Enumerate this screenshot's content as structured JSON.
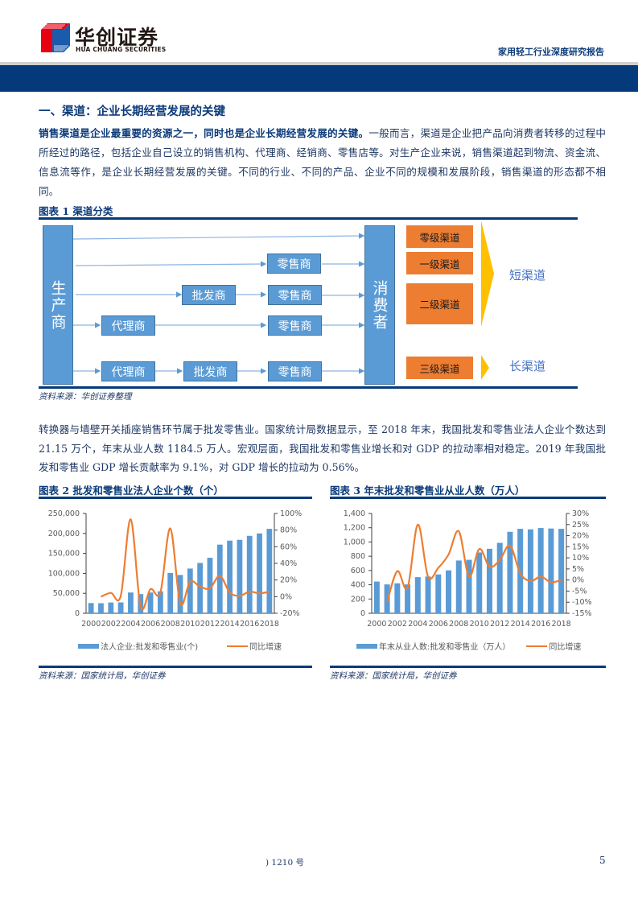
{
  "header": {
    "logo_cn": "华创证券",
    "logo_en": "HUA CHUANG SECURITIES",
    "report_title": "家用轻工行业深度研究报告"
  },
  "section": {
    "title": "一、渠道：企业长期经营发展的关键",
    "para1_bold": "销售渠道是企业最重要的资源之一，同时也是企业长期经营发展的关键。",
    "para1_rest": "一般而言，渠道是企业把产品向消费者转移的过程中所经过的路径，包括企业自己设立的销售机构、代理商、经销商、零售店等。对生产企业来说，销售渠道起到物流、资金流、信息流等作，是企业长期经营发展的关键。不同的行业、不同的产品、企业不同的规模和发展阶段，销售渠道的形态都不相同。",
    "para2": "转换器与墙壁开关插座销售环节属于批发零售业。国家统计局数据显示，至 2018 年末，我国批发和零售业法人企业个数达到 21.15 万个，年末从业人数 1184.5 万人。宏观层面，我国批发和零售业增长和对 GDP 的拉动率相对稳定。2019 年我国批发和零售业 GDP 增长贡献率为 9.1%，对 GDP 增长的拉动为 0.56%。"
  },
  "figure1": {
    "title": "图表 1    渠道分类",
    "producer": "生产商",
    "consumer": "消费者",
    "agent": "代理商",
    "wholesaler": "批发商",
    "retailer": "零售商",
    "levels": [
      "零级渠道",
      "一级渠道",
      "二级渠道",
      "三级渠道"
    ],
    "short_label": "短渠道",
    "long_label": "长渠道",
    "source": "资料来源：华创证券整理"
  },
  "figure2": {
    "title": "图表 2    批发和零售业法人企业个数（个）",
    "source": "资料来源：国家统计局，华创证券"
  },
  "figure3": {
    "title": "图表 3    年末批发和零售业从业人数（万人）",
    "source": "资料来源：国家统计局，华创证券"
  },
  "chart_data": [
    {
      "type": "bar",
      "title": "批发和零售业法人企业个数（个）",
      "categories": [
        "2000",
        "2001",
        "2002",
        "2003",
        "2004",
        "2005",
        "2006",
        "2007",
        "2008",
        "2009",
        "2010",
        "2011",
        "2012",
        "2013",
        "2014",
        "2015",
        "2016",
        "2017",
        "2018"
      ],
      "x_tick_labels": [
        "2000",
        "2002",
        "2004",
        "2006",
        "2008",
        "2010",
        "2012",
        "2014",
        "2016",
        "2018"
      ],
      "series": [
        {
          "name": "法人企业:批发和零售业(个)",
          "type": "bar",
          "axis": "left",
          "color": "#5b9bd5",
          "values": [
            25600,
            25200,
            27000,
            27200,
            52000,
            48000,
            52000,
            55000,
            101000,
            96000,
            112000,
            126000,
            139000,
            172000,
            182000,
            184000,
            194000,
            200000,
            211500
          ]
        },
        {
          "name": "同比增速",
          "type": "line",
          "axis": "right",
          "color": "#ed7d31",
          "values": [
            null,
            0,
            4.5,
            1,
            93,
            -12,
            9,
            5,
            82,
            -8,
            18,
            12,
            10,
            25,
            5,
            1,
            6,
            4,
            6
          ]
        }
      ],
      "left_axis": {
        "ylim": [
          0,
          250000
        ],
        "ticks": [
          "0",
          "50,000",
          "100,000",
          "150,000",
          "200,000",
          "250,000"
        ]
      },
      "right_axis": {
        "ylim": [
          -20,
          100
        ],
        "ticks": [
          "-20%",
          "0%",
          "20%",
          "40%",
          "60%",
          "80%",
          "100%"
        ]
      },
      "legend_position": "bottom",
      "grid": false
    },
    {
      "type": "bar",
      "title": "年末批发和零售业从业人数（万人）",
      "categories": [
        "2000",
        "2001",
        "2002",
        "2003",
        "2004",
        "2005",
        "2006",
        "2007",
        "2008",
        "2009",
        "2010",
        "2011",
        "2012",
        "2013",
        "2014",
        "2015",
        "2016",
        "2017",
        "2018"
      ],
      "x_tick_labels": [
        "2000",
        "2002",
        "2004",
        "2006",
        "2008",
        "2010",
        "2012",
        "2014",
        "2016",
        "2018"
      ],
      "series": [
        {
          "name": "年末从业人数:批发和零售业（万人）",
          "type": "bar",
          "axis": "left",
          "color": "#5b9bd5",
          "values": [
            445,
            405,
            420,
            405,
            507,
            515,
            545,
            602,
            740,
            750,
            853,
            905,
            988,
            1143,
            1185,
            1177,
            1196,
            1189,
            1184.5
          ]
        },
        {
          "name": "同比增速",
          "type": "line",
          "axis": "right",
          "color": "#ed7d31",
          "values": [
            null,
            -10,
            4,
            -3.5,
            25,
            1.5,
            5.5,
            11.5,
            22,
            1.5,
            14,
            6,
            9,
            15.5,
            3,
            -0.5,
            1.5,
            -1,
            0
          ]
        }
      ],
      "left_axis": {
        "ylim": [
          0,
          1400
        ],
        "ticks": [
          "0",
          "200",
          "400",
          "600",
          "800",
          "1,000",
          "1,200",
          "1,400"
        ]
      },
      "right_axis": {
        "ylim": [
          -15,
          30
        ],
        "ticks": [
          "-15%",
          "-10%",
          "-5%",
          "0%",
          "5%",
          "10%",
          "15%",
          "20%",
          "25%",
          "30%"
        ]
      },
      "legend_position": "bottom",
      "grid": false
    }
  ],
  "footer": {
    "left": ") 1210 号",
    "page": "5"
  }
}
